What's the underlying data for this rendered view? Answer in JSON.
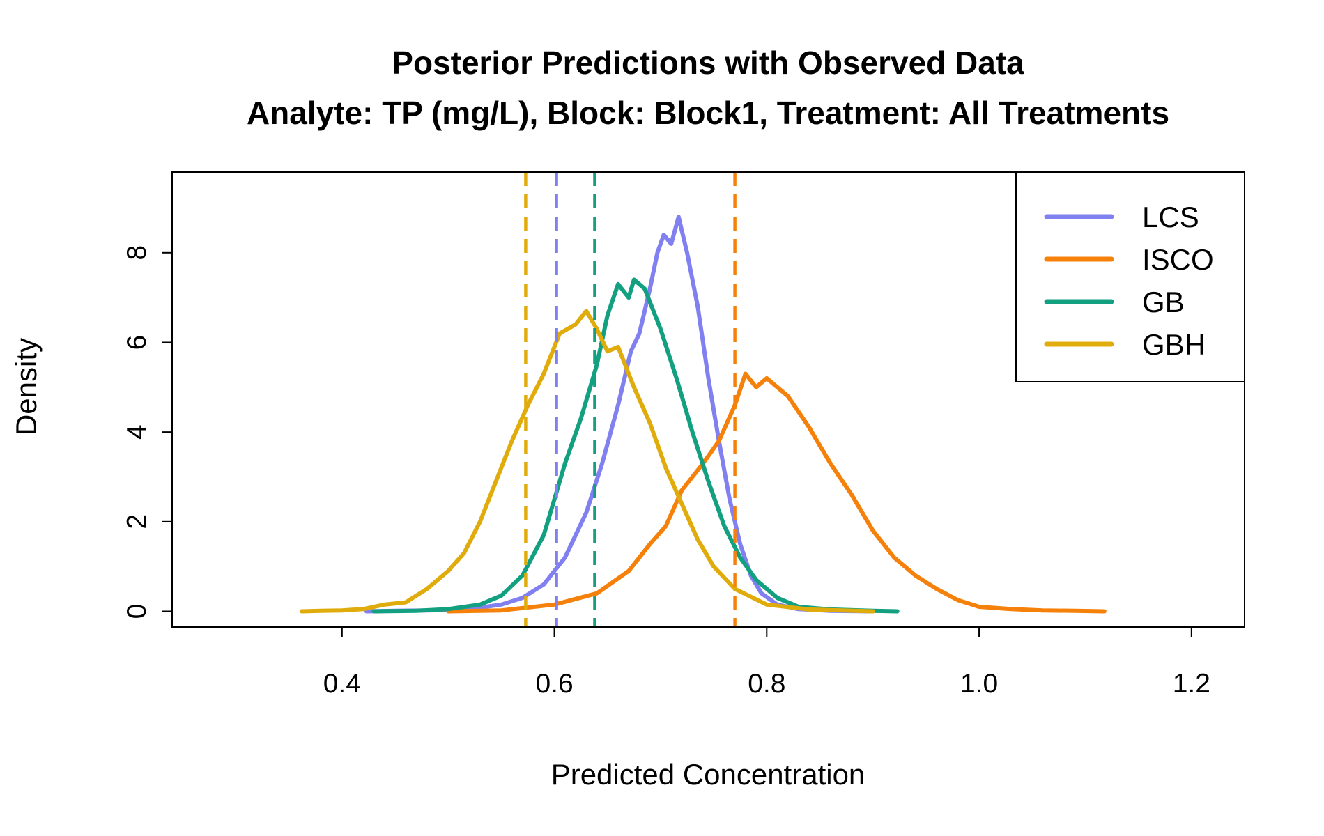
{
  "chart_data": {
    "type": "line",
    "title": "Posterior Predictions with Observed Data",
    "subtitle": "Analyte: TP (mg/L), Block: Block1, Treatment: All Treatments",
    "xlabel": "Predicted Concentration",
    "ylabel": "Density",
    "xlim": [
      0.24,
      1.25
    ],
    "ylim": [
      -0.35,
      9.8
    ],
    "x_ticks": [
      "0.4",
      "0.6",
      "0.8",
      "1.0",
      "1.2"
    ],
    "x_tick_values": [
      0.4,
      0.6,
      0.8,
      1.0,
      1.2
    ],
    "y_ticks": [
      "0",
      "2",
      "4",
      "6",
      "8"
    ],
    "y_tick_values": [
      0,
      2,
      4,
      6,
      8
    ],
    "grid": false,
    "legend_position": "top-right",
    "series": [
      {
        "name": "LCS",
        "color": "#8080f0",
        "observed": 0.602,
        "points": [
          [
            0.423,
            0
          ],
          [
            0.45,
            0.01
          ],
          [
            0.48,
            0.02
          ],
          [
            0.52,
            0.05
          ],
          [
            0.55,
            0.15
          ],
          [
            0.57,
            0.3
          ],
          [
            0.59,
            0.6
          ],
          [
            0.61,
            1.2
          ],
          [
            0.63,
            2.2
          ],
          [
            0.645,
            3.3
          ],
          [
            0.66,
            4.6
          ],
          [
            0.672,
            5.8
          ],
          [
            0.68,
            6.2
          ],
          [
            0.69,
            7.2
          ],
          [
            0.697,
            8.0
          ],
          [
            0.703,
            8.4
          ],
          [
            0.71,
            8.2
          ],
          [
            0.717,
            8.8
          ],
          [
            0.725,
            8.0
          ],
          [
            0.735,
            6.8
          ],
          [
            0.745,
            5.2
          ],
          [
            0.755,
            3.8
          ],
          [
            0.765,
            2.5
          ],
          [
            0.775,
            1.5
          ],
          [
            0.785,
            0.8
          ],
          [
            0.795,
            0.4
          ],
          [
            0.81,
            0.15
          ],
          [
            0.83,
            0.05
          ],
          [
            0.86,
            0.01
          ],
          [
            0.9,
            0
          ]
        ]
      },
      {
        "name": "ISCO",
        "color": "#f5800a",
        "observed": 0.77,
        "points": [
          [
            0.5,
            0
          ],
          [
            0.55,
            0.02
          ],
          [
            0.6,
            0.15
          ],
          [
            0.64,
            0.4
          ],
          [
            0.67,
            0.9
          ],
          [
            0.69,
            1.5
          ],
          [
            0.705,
            1.9
          ],
          [
            0.72,
            2.7
          ],
          [
            0.74,
            3.3
          ],
          [
            0.755,
            3.8
          ],
          [
            0.77,
            4.6
          ],
          [
            0.78,
            5.3
          ],
          [
            0.79,
            5.0
          ],
          [
            0.8,
            5.2
          ],
          [
            0.82,
            4.8
          ],
          [
            0.84,
            4.1
          ],
          [
            0.86,
            3.3
          ],
          [
            0.88,
            2.6
          ],
          [
            0.9,
            1.8
          ],
          [
            0.92,
            1.2
          ],
          [
            0.94,
            0.8
          ],
          [
            0.96,
            0.5
          ],
          [
            0.98,
            0.25
          ],
          [
            1.0,
            0.1
          ],
          [
            1.03,
            0.05
          ],
          [
            1.06,
            0.02
          ],
          [
            1.09,
            0.01
          ],
          [
            1.118,
            0
          ]
        ]
      },
      {
        "name": "GB",
        "color": "#13a081",
        "observed": 0.638,
        "points": [
          [
            0.43,
            0
          ],
          [
            0.47,
            0.01
          ],
          [
            0.5,
            0.05
          ],
          [
            0.53,
            0.15
          ],
          [
            0.55,
            0.35
          ],
          [
            0.57,
            0.8
          ],
          [
            0.59,
            1.7
          ],
          [
            0.6,
            2.5
          ],
          [
            0.61,
            3.3
          ],
          [
            0.625,
            4.3
          ],
          [
            0.64,
            5.5
          ],
          [
            0.65,
            6.6
          ],
          [
            0.66,
            7.3
          ],
          [
            0.67,
            7.0
          ],
          [
            0.675,
            7.4
          ],
          [
            0.685,
            7.2
          ],
          [
            0.7,
            6.3
          ],
          [
            0.715,
            5.2
          ],
          [
            0.73,
            4.0
          ],
          [
            0.745,
            2.9
          ],
          [
            0.76,
            1.9
          ],
          [
            0.775,
            1.2
          ],
          [
            0.79,
            0.7
          ],
          [
            0.81,
            0.3
          ],
          [
            0.83,
            0.1
          ],
          [
            0.86,
            0.04
          ],
          [
            0.9,
            0.01
          ],
          [
            0.923,
            0
          ]
        ]
      },
      {
        "name": "GBH",
        "color": "#e0ac0c",
        "observed": 0.573,
        "points": [
          [
            0.362,
            0
          ],
          [
            0.38,
            0.01
          ],
          [
            0.4,
            0.02
          ],
          [
            0.42,
            0.05
          ],
          [
            0.44,
            0.15
          ],
          [
            0.46,
            0.2
          ],
          [
            0.48,
            0.5
          ],
          [
            0.5,
            0.9
          ],
          [
            0.515,
            1.3
          ],
          [
            0.53,
            2.0
          ],
          [
            0.545,
            2.9
          ],
          [
            0.56,
            3.8
          ],
          [
            0.575,
            4.6
          ],
          [
            0.59,
            5.3
          ],
          [
            0.605,
            6.2
          ],
          [
            0.62,
            6.4
          ],
          [
            0.63,
            6.7
          ],
          [
            0.64,
            6.3
          ],
          [
            0.65,
            5.8
          ],
          [
            0.66,
            5.9
          ],
          [
            0.675,
            5.0
          ],
          [
            0.69,
            4.2
          ],
          [
            0.705,
            3.2
          ],
          [
            0.72,
            2.4
          ],
          [
            0.735,
            1.6
          ],
          [
            0.75,
            1.0
          ],
          [
            0.77,
            0.5
          ],
          [
            0.8,
            0.15
          ],
          [
            0.84,
            0.04
          ],
          [
            0.9,
            0
          ]
        ]
      }
    ]
  }
}
